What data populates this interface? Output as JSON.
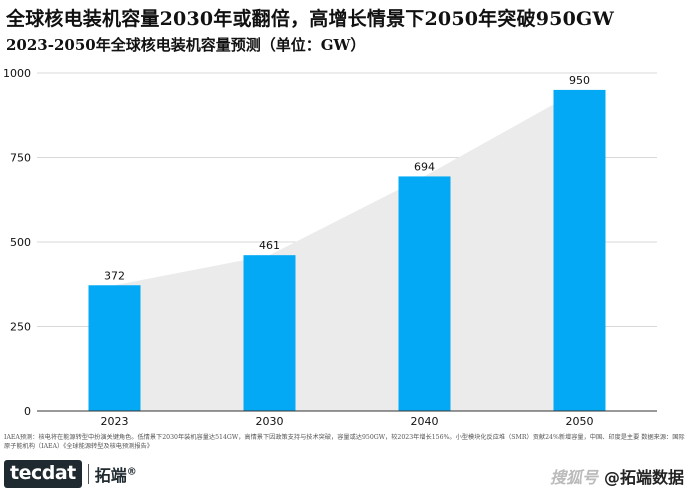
{
  "title": "全球核电装机容量2030年或翻倍，高增长情景下2050年突破950GW",
  "subtitle": "2023-2050年全球核电装机容量预测（单位：GW）",
  "note": "IAEA预测：核电将在能源转型中扮演关键角色。低情景下2030年装机容量达514GW，高情景下因政策支持与技术突破，容量或达950GW，较2023年增长156%。小型模块化反应堆（SMR）贡献24%新增容量，中国、印度是主要 数据来源：国际原子能机构（IAEA）《全球能源转型及核电预测报告》",
  "footer": {
    "brand": "tecdat",
    "brand_cn": "拓端",
    "brand_reg": "®",
    "watermark_logo": "搜狐号",
    "watermark_text": "@拓端数据"
  },
  "colors": {
    "bar": "#03a9f4",
    "area": "#ebebeb",
    "grid": "#d9d9d9",
    "text": "#111111"
  },
  "chart_data": {
    "type": "bar",
    "categories": [
      "2023",
      "2030",
      "2040",
      "2050"
    ],
    "values": [
      372,
      461,
      694,
      950
    ],
    "ylim": [
      0,
      1000
    ],
    "yticks": [
      0,
      250,
      500,
      750,
      1000
    ],
    "grid": true,
    "background_area": true,
    "xlabel": "",
    "ylabel": ""
  }
}
